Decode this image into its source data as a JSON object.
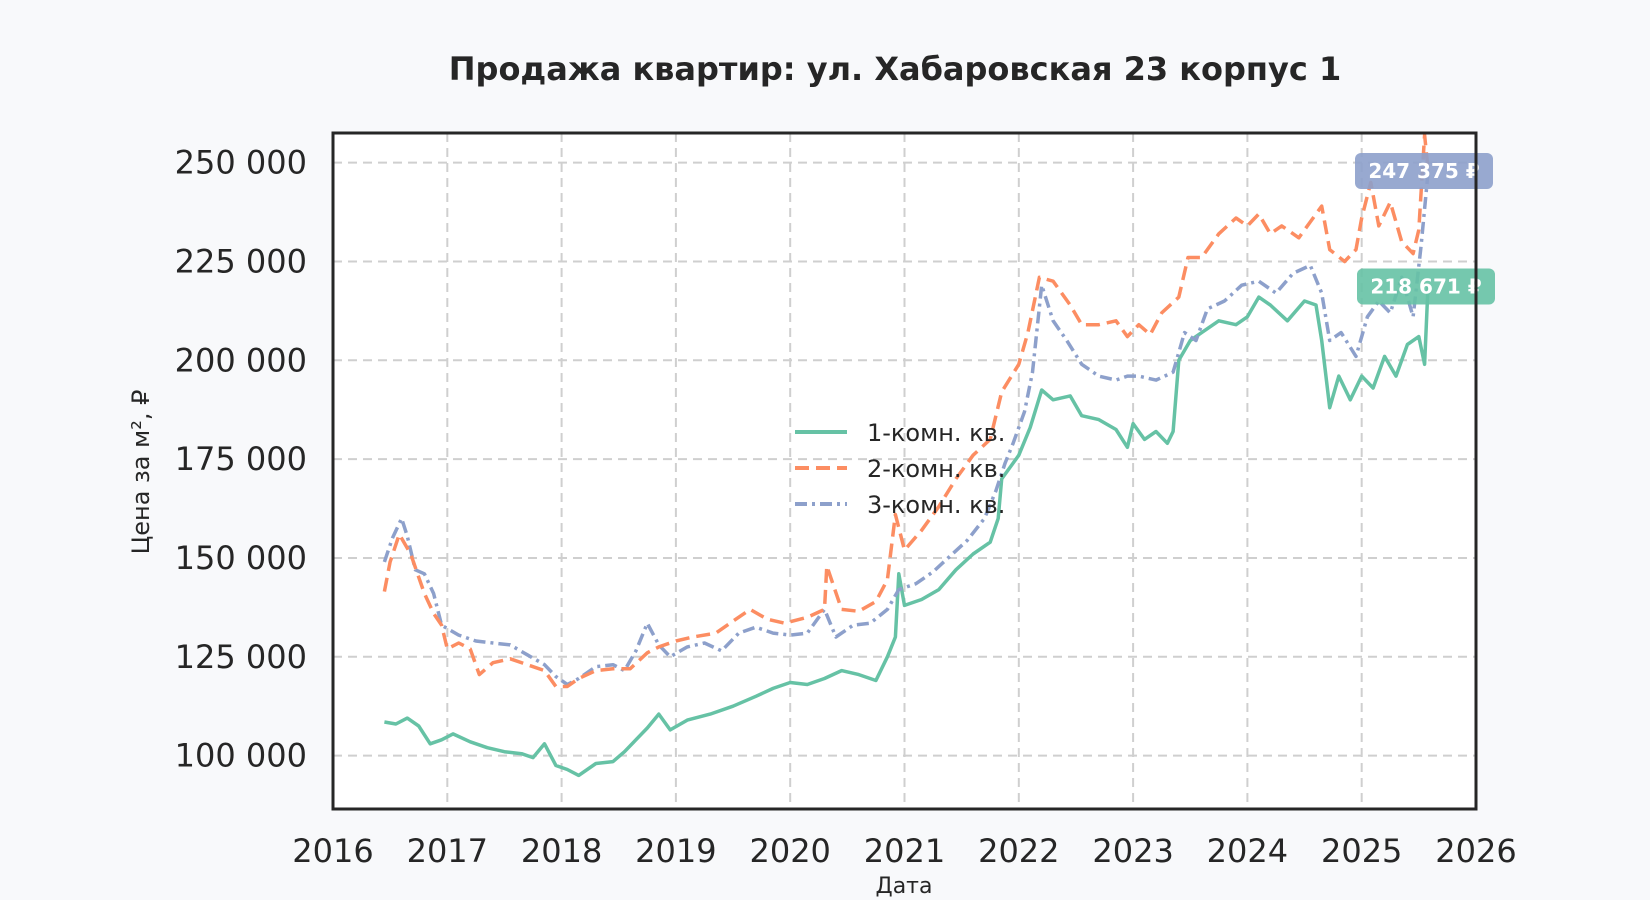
{
  "chart_data": {
    "type": "line",
    "title": "Продажа квартир: ул. Хабаровская 23 корпус 1",
    "xlabel": "Дата",
    "ylabel": "Цена за м², ₽",
    "xlim": [
      2016,
      2026
    ],
    "ylim": [
      86500,
      257500
    ],
    "x_ticks": [
      "2016",
      "2017",
      "2018",
      "2019",
      "2020",
      "2021",
      "2022",
      "2023",
      "2024",
      "2025",
      "2026"
    ],
    "y_ticks": [
      100000,
      125000,
      150000,
      175000,
      200000,
      225000,
      250000
    ],
    "y_tick_labels": [
      "100 000",
      "125 000",
      "150 000",
      "175 000",
      "200 000",
      "225 000",
      "250 000"
    ],
    "grid": true,
    "legend_position": "center",
    "series": [
      {
        "name": "1-комн. кв.",
        "color": "#66c2a5",
        "dash": "solid",
        "end_label": "218 671 ₽",
        "points": [
          [
            "2016.45",
            108500
          ],
          [
            "2016.55",
            108000
          ],
          [
            "2016.65",
            109500
          ],
          [
            "2016.75",
            107500
          ],
          [
            "2016.85",
            103000
          ],
          [
            "2016.95",
            104000
          ],
          [
            "2017.05",
            105500
          ],
          [
            "2017.2",
            103500
          ],
          [
            "2017.35",
            102000
          ],
          [
            "2017.5",
            101000
          ],
          [
            "2017.65",
            100500
          ],
          [
            "2017.75",
            99500
          ],
          [
            "2017.85",
            103000
          ],
          [
            "2017.95",
            97500
          ],
          [
            "2018.05",
            96500
          ],
          [
            "2018.15",
            95000
          ],
          [
            "2018.3",
            98000
          ],
          [
            "2018.45",
            98500
          ],
          [
            "2018.55",
            101000
          ],
          [
            "2018.65",
            104000
          ],
          [
            "2018.75",
            107000
          ],
          [
            "2018.85",
            110500
          ],
          [
            "2018.95",
            106500
          ],
          [
            "2019.1",
            109000
          ],
          [
            "2019.3",
            110500
          ],
          [
            "2019.5",
            112500
          ],
          [
            "2019.7",
            115000
          ],
          [
            "2019.85",
            117000
          ],
          [
            "2020.0",
            118500
          ],
          [
            "2020.15",
            118000
          ],
          [
            "2020.3",
            119500
          ],
          [
            "2020.45",
            121500
          ],
          [
            "2020.6",
            120500
          ],
          [
            "2020.75",
            119000
          ],
          [
            "2020.85",
            125000
          ],
          [
            "2020.92",
            130000
          ],
          [
            "2020.95",
            146000
          ],
          [
            "2021.0",
            138000
          ],
          [
            "2021.15",
            139500
          ],
          [
            "2021.3",
            142000
          ],
          [
            "2021.45",
            147000
          ],
          [
            "2021.6",
            151000
          ],
          [
            "2021.75",
            154000
          ],
          [
            "2021.82",
            160000
          ],
          [
            "2021.85",
            170000
          ],
          [
            "2021.95",
            174000
          ],
          [
            "2022.0",
            176000
          ],
          [
            "2022.1",
            183000
          ],
          [
            "2022.2",
            192500
          ],
          [
            "2022.3",
            190000
          ],
          [
            "2022.45",
            191000
          ],
          [
            "2022.55",
            186000
          ],
          [
            "2022.7",
            185000
          ],
          [
            "2022.85",
            182500
          ],
          [
            "2022.95",
            178000
          ],
          [
            "2023.0",
            184000
          ],
          [
            "2023.1",
            180000
          ],
          [
            "2023.2",
            182000
          ],
          [
            "2023.3",
            179000
          ],
          [
            "2023.35",
            182000
          ],
          [
            "2023.4",
            200000
          ],
          [
            "2023.5",
            205000
          ],
          [
            "2023.6",
            207000
          ],
          [
            "2023.75",
            210000
          ],
          [
            "2023.9",
            209000
          ],
          [
            "2024.0",
            211000
          ],
          [
            "2024.1",
            216000
          ],
          [
            "2024.2",
            214000
          ],
          [
            "2024.35",
            210000
          ],
          [
            "2024.5",
            215000
          ],
          [
            "2024.6",
            214000
          ],
          [
            "2024.65",
            205000
          ],
          [
            "2024.72",
            188000
          ],
          [
            "2024.8",
            196000
          ],
          [
            "2024.9",
            190000
          ],
          [
            "2025.0",
            196000
          ],
          [
            "2025.1",
            193000
          ],
          [
            "2025.2",
            201000
          ],
          [
            "2025.3",
            196000
          ],
          [
            "2025.4",
            204000
          ],
          [
            "2025.5",
            206000
          ],
          [
            "2025.55",
            199000
          ],
          [
            "2025.58",
            218671
          ]
        ]
      },
      {
        "name": "2-комн. кв.",
        "color": "#fc8d62",
        "dash": "dashed",
        "end_label": "",
        "points": [
          [
            "2016.45",
            141500
          ],
          [
            "2016.5",
            149000
          ],
          [
            "2016.58",
            156000
          ],
          [
            "2016.68",
            151000
          ],
          [
            "2016.8",
            141000
          ],
          [
            "2016.88",
            136000
          ],
          [
            "2016.95",
            133000
          ],
          [
            "2017.0",
            127000
          ],
          [
            "2017.1",
            128500
          ],
          [
            "2017.2",
            127000
          ],
          [
            "2017.28",
            120500
          ],
          [
            "2017.4",
            123500
          ],
          [
            "2017.55",
            124500
          ],
          [
            "2017.7",
            123000
          ],
          [
            "2017.85",
            121500
          ],
          [
            "2017.95",
            117500
          ],
          [
            "2018.05",
            117500
          ],
          [
            "2018.15",
            119500
          ],
          [
            "2018.3",
            121500
          ],
          [
            "2018.45",
            122000
          ],
          [
            "2018.6",
            122000
          ],
          [
            "2018.75",
            126000
          ],
          [
            "2018.85",
            127500
          ],
          [
            "2019.0",
            129000
          ],
          [
            "2019.15",
            130000
          ],
          [
            "2019.35",
            131000
          ],
          [
            "2019.5",
            134000
          ],
          [
            "2019.65",
            137000
          ],
          [
            "2019.8",
            134500
          ],
          [
            "2019.95",
            133500
          ],
          [
            "2020.15",
            135000
          ],
          [
            "2020.3",
            137000
          ],
          [
            "2020.32",
            148000
          ],
          [
            "2020.45",
            137000
          ],
          [
            "2020.6",
            136500
          ],
          [
            "2020.75",
            139000
          ],
          [
            "2020.85",
            144500
          ],
          [
            "2020.92",
            161000
          ],
          [
            "2021.0",
            152000
          ],
          [
            "2021.15",
            157000
          ],
          [
            "2021.3",
            163000
          ],
          [
            "2021.45",
            170000
          ],
          [
            "2021.6",
            176000
          ],
          [
            "2021.75",
            180000
          ],
          [
            "2021.85",
            192000
          ],
          [
            "2022.0",
            199000
          ],
          [
            "2022.08",
            207000
          ],
          [
            "2022.18",
            221000
          ],
          [
            "2022.3",
            220000
          ],
          [
            "2022.45",
            214000
          ],
          [
            "2022.55",
            209000
          ],
          [
            "2022.7",
            209000
          ],
          [
            "2022.85",
            210000
          ],
          [
            "2022.95",
            206000
          ],
          [
            "2023.05",
            209000
          ],
          [
            "2023.15",
            206500
          ],
          [
            "2023.25",
            212000
          ],
          [
            "2023.4",
            216000
          ],
          [
            "2023.48",
            226000
          ],
          [
            "2023.6",
            226000
          ],
          [
            "2023.75",
            232000
          ],
          [
            "2023.9",
            236000
          ],
          [
            "2024.0",
            234000
          ],
          [
            "2024.1",
            237000
          ],
          [
            "2024.2",
            232000
          ],
          [
            "2024.3",
            234000
          ],
          [
            "2024.45",
            231000
          ],
          [
            "2024.55",
            235000
          ],
          [
            "2024.65",
            239000
          ],
          [
            "2024.72",
            228000
          ],
          [
            "2024.85",
            225000
          ],
          [
            "2024.95",
            228000
          ],
          [
            "2025.0",
            236000
          ],
          [
            "2025.08",
            245000
          ],
          [
            "2025.15",
            234000
          ],
          [
            "2025.25",
            240000
          ],
          [
            "2025.35",
            230000
          ],
          [
            "2025.45",
            227000
          ],
          [
            "2025.5",
            233000
          ],
          [
            "2025.55",
            257000
          ],
          [
            "2025.58",
            248500
          ]
        ]
      },
      {
        "name": "3-комн. кв.",
        "color": "#8da0cb",
        "dash": "dashdot",
        "end_label": "247 375 ₽",
        "points": [
          [
            "2016.45",
            149000
          ],
          [
            "2016.52",
            155000
          ],
          [
            "2016.6",
            160000
          ],
          [
            "2016.65",
            155500
          ],
          [
            "2016.72",
            147000
          ],
          [
            "2016.8",
            146000
          ],
          [
            "2016.88",
            141000
          ],
          [
            "2016.95",
            133000
          ],
          [
            "2017.1",
            130500
          ],
          [
            "2017.25",
            129000
          ],
          [
            "2017.4",
            128500
          ],
          [
            "2017.55",
            128000
          ],
          [
            "2017.7",
            125500
          ],
          [
            "2017.85",
            123000
          ],
          [
            "2017.95",
            120000
          ],
          [
            "2018.05",
            118000
          ],
          [
            "2018.15",
            119500
          ],
          [
            "2018.3",
            122500
          ],
          [
            "2018.45",
            123000
          ],
          [
            "2018.55",
            121500
          ],
          [
            "2018.65",
            126500
          ],
          [
            "2018.75",
            133500
          ],
          [
            "2018.85",
            128000
          ],
          [
            "2018.95",
            125000
          ],
          [
            "2019.1",
            127500
          ],
          [
            "2019.25",
            128500
          ],
          [
            "2019.4",
            126500
          ],
          [
            "2019.55",
            131000
          ],
          [
            "2019.7",
            132500
          ],
          [
            "2019.85",
            131000
          ],
          [
            "2020.0",
            130500
          ],
          [
            "2020.15",
            131000
          ],
          [
            "2020.3",
            137000
          ],
          [
            "2020.4",
            130000
          ],
          [
            "2020.55",
            133000
          ],
          [
            "2020.7",
            133500
          ],
          [
            "2020.85",
            137000
          ],
          [
            "2020.95",
            142000
          ],
          [
            "2021.1",
            143500
          ],
          [
            "2021.25",
            146500
          ],
          [
            "2021.4",
            150500
          ],
          [
            "2021.55",
            154500
          ],
          [
            "2021.7",
            160000
          ],
          [
            "2021.8",
            167000
          ],
          [
            "2021.88",
            174000
          ],
          [
            "2021.95",
            179000
          ],
          [
            "2022.05",
            187000
          ],
          [
            "2022.12",
            197000
          ],
          [
            "2022.2",
            219000
          ],
          [
            "2022.3",
            210000
          ],
          [
            "2022.42",
            205000
          ],
          [
            "2022.55",
            199000
          ],
          [
            "2022.7",
            196000
          ],
          [
            "2022.85",
            195000
          ],
          [
            "2022.95",
            196000
          ],
          [
            "2023.05",
            196000
          ],
          [
            "2023.2",
            195000
          ],
          [
            "2023.35",
            197000
          ],
          [
            "2023.45",
            207000
          ],
          [
            "2023.55",
            205000
          ],
          [
            "2023.65",
            213000
          ],
          [
            "2023.8",
            215000
          ],
          [
            "2023.95",
            219000
          ],
          [
            "2024.1",
            220000
          ],
          [
            "2024.25",
            217000
          ],
          [
            "2024.4",
            222000
          ],
          [
            "2024.55",
            224000
          ],
          [
            "2024.65",
            217000
          ],
          [
            "2024.72",
            205000
          ],
          [
            "2024.82",
            207000
          ],
          [
            "2024.95",
            201000
          ],
          [
            "2025.05",
            211000
          ],
          [
            "2025.15",
            215000
          ],
          [
            "2025.25",
            212000
          ],
          [
            "2025.35",
            221000
          ],
          [
            "2025.45",
            211000
          ],
          [
            "2025.52",
            229000
          ],
          [
            "2025.58",
            247375
          ]
        ]
      }
    ]
  }
}
